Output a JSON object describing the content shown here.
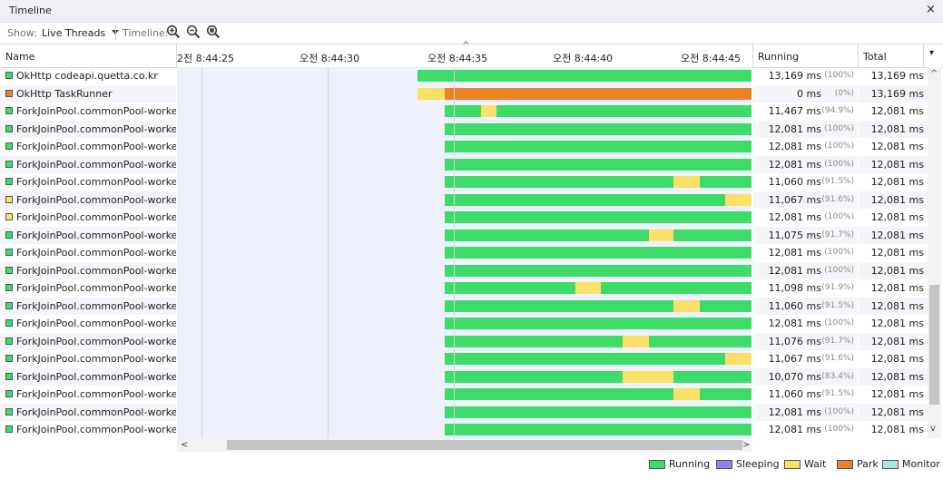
{
  "panel": {
    "title": "Timeline",
    "close_glyph": "×"
  },
  "toolbar": {
    "show_label": "Show:",
    "show_value": "Live Threads",
    "show_dropdown_icon": "chevron-down-icon",
    "timeline_label": "Timeline:",
    "zoom_icons": [
      "zoom-in-icon",
      "zoom-out-icon",
      "zoom-fit-icon"
    ]
  },
  "columns": {
    "name": "Name",
    "running": "Running",
    "total": "Total",
    "total_menu_glyph": "▾"
  },
  "timeline": {
    "ticks": [
      "2전 8:44:25",
      "오전 8:44:30",
      "오전 8:44:35",
      "오전 8:44:40",
      "오전 8:44:45"
    ],
    "marker_glyph": "^"
  },
  "colors": {
    "running": "#3ddc68",
    "sleeping": "#8c87e6",
    "wait": "#fbe067",
    "park": "#ea8223",
    "monitor": "#a8e6ee"
  },
  "threads": [
    {
      "name": "OkHttp codeapi.quetta.co.kr",
      "state": "running",
      "running": "13,169 ms",
      "pct": "(100%)",
      "total": "13,169 ms",
      "segments": [
        {
          "s": 0.0,
          "e": 13.169,
          "st": "running"
        }
      ]
    },
    {
      "name": "OkHttp TaskRunner",
      "state": "park",
      "running": "0 ms",
      "pct": "(0%)",
      "total": "13,169 ms",
      "segments": [
        {
          "s": 0.0,
          "e": 1.07,
          "st": "wait"
        },
        {
          "s": 1.07,
          "e": 13.169,
          "st": "park"
        }
      ]
    },
    {
      "name": "ForkJoinPool.commonPool-worker-",
      "state": "running",
      "running": "11,467 ms",
      "pct": "(94.9%)",
      "total": "12,081 ms",
      "segments": [
        {
          "s": 1.07,
          "e": 2.5,
          "st": "running"
        },
        {
          "s": 2.5,
          "e": 3.12,
          "st": "wait"
        },
        {
          "s": 3.12,
          "e": 13.169,
          "st": "running"
        }
      ]
    },
    {
      "name": "ForkJoinPool.commonPool-worker-",
      "state": "running",
      "running": "12,081 ms",
      "pct": "(100%)",
      "total": "12,081 ms",
      "segments": [
        {
          "s": 1.07,
          "e": 13.169,
          "st": "running"
        }
      ]
    },
    {
      "name": "ForkJoinPool.commonPool-worker-",
      "state": "running",
      "running": "12,081 ms",
      "pct": "(100%)",
      "total": "12,081 ms",
      "segments": [
        {
          "s": 1.07,
          "e": 13.169,
          "st": "running"
        }
      ]
    },
    {
      "name": "ForkJoinPool.commonPool-worker-",
      "state": "running",
      "running": "12,081 ms",
      "pct": "(100%)",
      "total": "12,081 ms",
      "segments": [
        {
          "s": 1.07,
          "e": 13.169,
          "st": "running"
        }
      ]
    },
    {
      "name": "ForkJoinPool.commonPool-worker-",
      "state": "running",
      "running": "11,060 ms",
      "pct": "(91.5%)",
      "total": "12,081 ms",
      "segments": [
        {
          "s": 1.07,
          "e": 10.1,
          "st": "running"
        },
        {
          "s": 10.1,
          "e": 11.12,
          "st": "wait"
        },
        {
          "s": 11.12,
          "e": 13.169,
          "st": "running"
        }
      ]
    },
    {
      "name": "ForkJoinPool.commonPool-worker-",
      "state": "wait",
      "running": "11,067 ms",
      "pct": "(91.6%)",
      "total": "12,081 ms",
      "segments": [
        {
          "s": 1.07,
          "e": 12.14,
          "st": "running"
        },
        {
          "s": 12.14,
          "e": 13.169,
          "st": "wait"
        }
      ]
    },
    {
      "name": "ForkJoinPool.commonPool-worker-",
      "state": "wait",
      "running": "12,081 ms",
      "pct": "(100%)",
      "total": "12,081 ms",
      "segments": [
        {
          "s": 1.07,
          "e": 13.169,
          "st": "running"
        }
      ]
    },
    {
      "name": "ForkJoinPool.commonPool-worker-",
      "state": "running",
      "running": "11,075 ms",
      "pct": "(91.7%)",
      "total": "12,081 ms",
      "segments": [
        {
          "s": 1.07,
          "e": 9.12,
          "st": "running"
        },
        {
          "s": 9.12,
          "e": 10.1,
          "st": "wait"
        },
        {
          "s": 10.1,
          "e": 13.169,
          "st": "running"
        }
      ]
    },
    {
      "name": "ForkJoinPool.commonPool-worker-",
      "state": "running",
      "running": "12,081 ms",
      "pct": "(100%)",
      "total": "12,081 ms",
      "segments": [
        {
          "s": 1.07,
          "e": 13.169,
          "st": "running"
        }
      ]
    },
    {
      "name": "ForkJoinPool.commonPool-worker-",
      "state": "running",
      "running": "12,081 ms",
      "pct": "(100%)",
      "total": "12,081 ms",
      "segments": [
        {
          "s": 1.07,
          "e": 13.169,
          "st": "running"
        }
      ]
    },
    {
      "name": "ForkJoinPool.commonPool-worker-",
      "state": "running",
      "running": "11,098 ms",
      "pct": "(91.9%)",
      "total": "12,081 ms",
      "segments": [
        {
          "s": 1.07,
          "e": 6.24,
          "st": "running"
        },
        {
          "s": 6.24,
          "e": 7.22,
          "st": "wait"
        },
        {
          "s": 7.22,
          "e": 13.169,
          "st": "running"
        }
      ]
    },
    {
      "name": "ForkJoinPool.commonPool-worker-",
      "state": "running",
      "running": "11,060 ms",
      "pct": "(91.5%)",
      "total": "12,081 ms",
      "segments": [
        {
          "s": 1.07,
          "e": 10.1,
          "st": "running"
        },
        {
          "s": 10.1,
          "e": 11.12,
          "st": "wait"
        },
        {
          "s": 11.12,
          "e": 13.169,
          "st": "running"
        }
      ]
    },
    {
      "name": "ForkJoinPool.commonPool-worker-",
      "state": "running",
      "running": "12,081 ms",
      "pct": "(100%)",
      "total": "12,081 ms",
      "segments": [
        {
          "s": 1.07,
          "e": 13.169,
          "st": "running"
        }
      ]
    },
    {
      "name": "ForkJoinPool.commonPool-worker-",
      "state": "running",
      "running": "11,076 ms",
      "pct": "(91.7%)",
      "total": "12,081 ms",
      "segments": [
        {
          "s": 1.07,
          "e": 8.09,
          "st": "running"
        },
        {
          "s": 8.09,
          "e": 9.14,
          "st": "wait"
        },
        {
          "s": 9.14,
          "e": 13.169,
          "st": "running"
        }
      ]
    },
    {
      "name": "ForkJoinPool.commonPool-worker-",
      "state": "running",
      "running": "11,067 ms",
      "pct": "(91.6%)",
      "total": "12,081 ms",
      "segments": [
        {
          "s": 1.07,
          "e": 12.14,
          "st": "running"
        },
        {
          "s": 12.14,
          "e": 13.169,
          "st": "wait"
        }
      ]
    },
    {
      "name": "ForkJoinPool.commonPool-worker-",
      "state": "running",
      "running": "10,070 ms",
      "pct": "(83.4%)",
      "total": "12,081 ms",
      "segments": [
        {
          "s": 1.07,
          "e": 8.09,
          "st": "running"
        },
        {
          "s": 8.09,
          "e": 10.1,
          "st": "wait"
        },
        {
          "s": 10.1,
          "e": 13.169,
          "st": "running"
        }
      ]
    },
    {
      "name": "ForkJoinPool.commonPool-worker-",
      "state": "running",
      "running": "11,060 ms",
      "pct": "(91.5%)",
      "total": "12,081 ms",
      "segments": [
        {
          "s": 1.07,
          "e": 10.1,
          "st": "running"
        },
        {
          "s": 10.1,
          "e": 11.12,
          "st": "wait"
        },
        {
          "s": 11.12,
          "e": 13.169,
          "st": "running"
        }
      ]
    },
    {
      "name": "ForkJoinPool.commonPool-worker-",
      "state": "running",
      "running": "12,081 ms",
      "pct": "(100%)",
      "total": "12,081 ms",
      "segments": [
        {
          "s": 1.07,
          "e": 13.169,
          "st": "running"
        }
      ]
    },
    {
      "name": "ForkJoinPool.commonPool-worker-",
      "state": "running",
      "running": "12,081 ms",
      "pct": "(100%)",
      "total": "12,081 ms",
      "segments": [
        {
          "s": 1.07,
          "e": 13.169,
          "st": "running"
        }
      ]
    }
  ],
  "legend": [
    {
      "label": "Running",
      "state": "running"
    },
    {
      "label": "Sleeping",
      "state": "sleeping"
    },
    {
      "label": "Wait",
      "state": "wait"
    },
    {
      "label": "Park",
      "state": "park"
    },
    {
      "label": "Monitor",
      "state": "monitor"
    }
  ],
  "scrollbar": {
    "up": "^",
    "down": "v",
    "left": "<",
    "right": ">"
  }
}
